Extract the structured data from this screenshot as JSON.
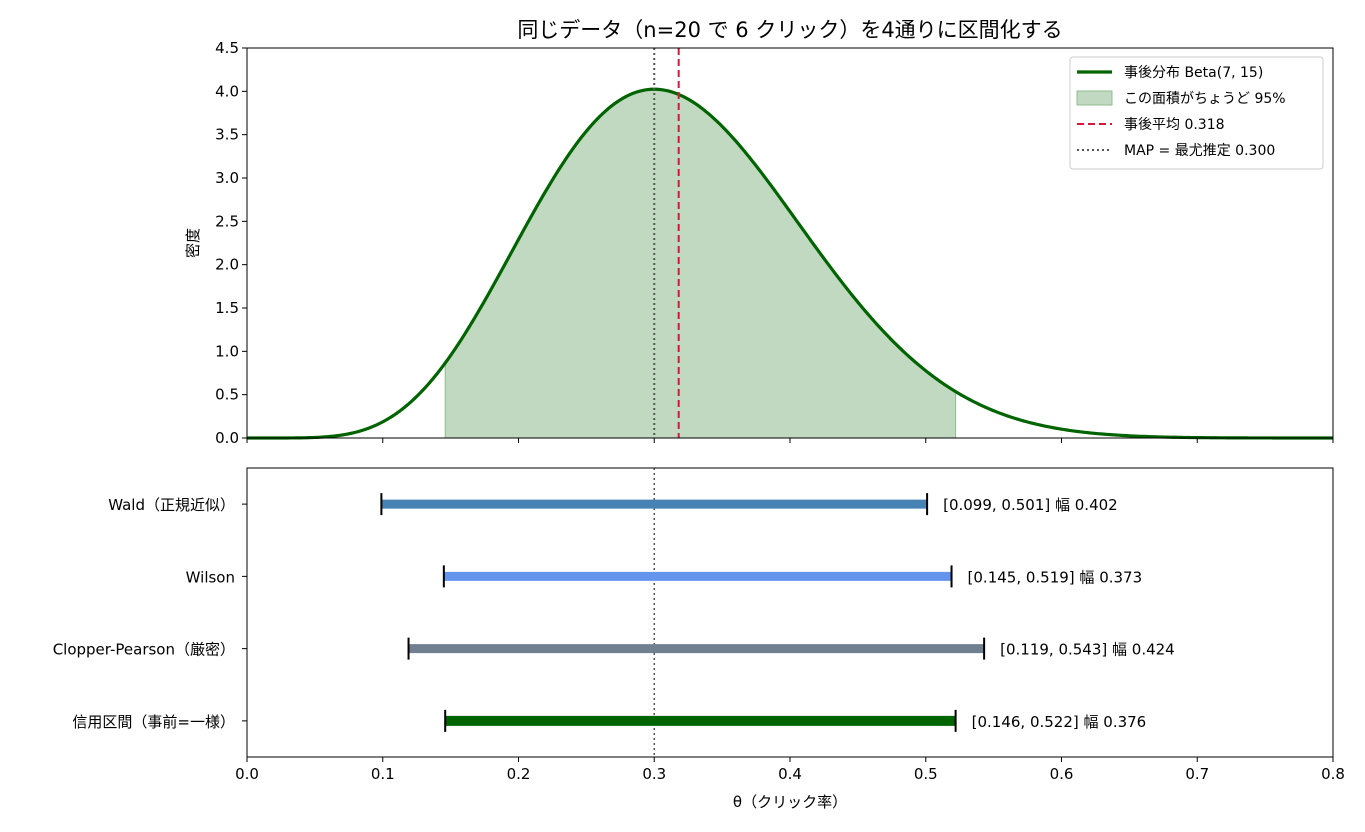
{
  "chart_data": [
    {
      "type": "area",
      "title": "同じデータ（n=20 で 6 クリック）を4通りに区間化する",
      "ylabel": "密度",
      "xlim": [
        0.0,
        0.8
      ],
      "ylim": [
        0.0,
        4.5
      ],
      "x_ticks": [
        0.0,
        0.1,
        0.2,
        0.3,
        0.4,
        0.5,
        0.6,
        0.7,
        0.8
      ],
      "y_ticks": [
        "0.0",
        "0.5",
        "1.0",
        "1.5",
        "2.0",
        "2.5",
        "3.0",
        "3.5",
        "4.0",
        "4.5"
      ],
      "grid": false,
      "legend_position": "top-right",
      "distribution": {
        "family": "beta",
        "a": 7,
        "b": 15
      },
      "shaded_interval": [
        0.146,
        0.522
      ],
      "posterior_mean": 0.318,
      "map": 0.3,
      "colors": {
        "curve": "#006400",
        "fill": "#c0d9c0",
        "fill_edge": "#8fbc8f",
        "mean": "#dc143c",
        "map": "#555555"
      },
      "legend": [
        {
          "label": "事後分布 Beta(7, 15)",
          "style": "line",
          "color": "#006400"
        },
        {
          "label": "この面積がちょうど 95%",
          "style": "patch",
          "color": "#c0d9c0"
        },
        {
          "label": "事後平均 0.318",
          "style": "dashed",
          "color": "#dc143c"
        },
        {
          "label": "MAP = 最尤推定 0.300",
          "style": "dotted",
          "color": "#555555"
        }
      ]
    },
    {
      "type": "interval",
      "xlabel": "θ（クリック率）",
      "xlim": [
        0.0,
        0.8
      ],
      "x_tick_labels": [
        "0.0",
        "0.1",
        "0.2",
        "0.3",
        "0.4",
        "0.5",
        "0.6",
        "0.7",
        "0.8"
      ],
      "reference_line": 0.3,
      "intervals": [
        {
          "name": "Wald（正規近似）",
          "low": 0.099,
          "high": 0.501,
          "label": "[0.099, 0.501]  幅 0.402",
          "color": "#4682b4"
        },
        {
          "name": "Wilson",
          "low": 0.145,
          "high": 0.519,
          "label": "[0.145, 0.519]  幅 0.373",
          "color": "#6495ed"
        },
        {
          "name": "Clopper-Pearson（厳密）",
          "low": 0.119,
          "high": 0.543,
          "label": "[0.119, 0.543]  幅 0.424",
          "color": "#708090"
        },
        {
          "name": "信用区間（事前=一様）",
          "low": 0.146,
          "high": 0.522,
          "label": "[0.146, 0.522]  幅 0.376",
          "color": "#006400"
        }
      ]
    }
  ]
}
